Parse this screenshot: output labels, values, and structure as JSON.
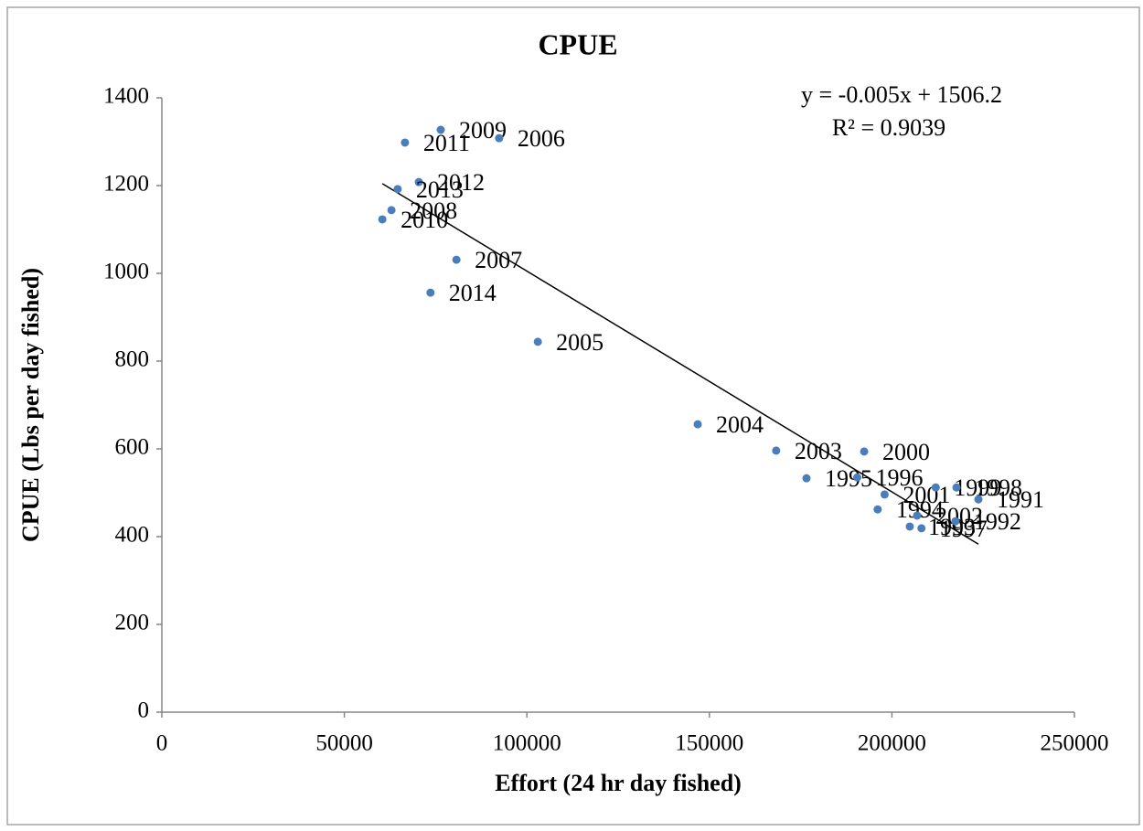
{
  "chart_data": {
    "type": "scatter",
    "title": "CPUE",
    "x_label": "Effort (24 hr day fished)",
    "y_label": "CPUE (Lbs per day fished)",
    "trendline_equation": "y = -0.005x + 1506.2",
    "trendline_r2": "R² = 0.9039",
    "xlim": [
      0,
      250000
    ],
    "ylim": [
      0,
      1400
    ],
    "xticks": [
      0,
      50000,
      100000,
      150000,
      200000,
      250000
    ],
    "yticks": [
      0,
      200,
      400,
      600,
      800,
      1000,
      1200,
      1400
    ],
    "color": "#4a7ebb",
    "point_labels": [
      "2009",
      "2006",
      "2011",
      "2012",
      "2013",
      "2008",
      "2010",
      "2007",
      "2014",
      "2005",
      "2004",
      "2003",
      "2000",
      "1995",
      "1996",
      "2001",
      "1999",
      "1998",
      "1991",
      "1994",
      "2002",
      "1993",
      "1997",
      "1992"
    ],
    "x": [
      76400,
      92400,
      66600,
      70400,
      64600,
      62900,
      60400,
      80700,
      73600,
      103000,
      146800,
      168300,
      192400,
      176600,
      190500,
      198000,
      212000,
      217700,
      223700,
      196100,
      206900,
      204900,
      208100,
      217400
    ],
    "values": [
      1327,
      1308,
      1298,
      1208,
      1192,
      1144,
      1123,
      1031,
      956,
      844,
      656,
      596,
      594,
      533,
      535,
      496,
      512,
      512,
      485,
      462,
      448,
      423,
      419,
      435
    ]
  }
}
